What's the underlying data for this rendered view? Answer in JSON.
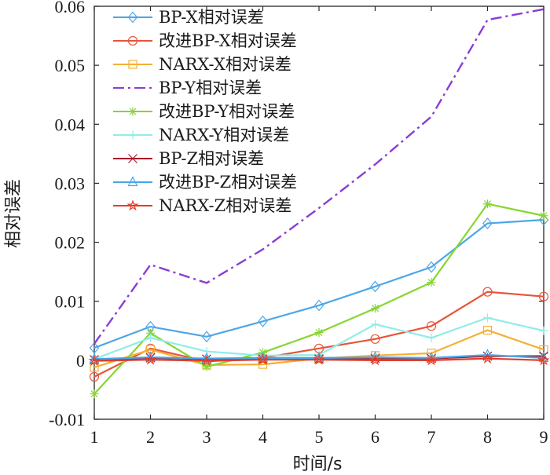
{
  "chart_data": {
    "type": "line",
    "title": "",
    "xlabel": "时间/s",
    "ylabel": "相对误差",
    "x": [
      1,
      2,
      3,
      4,
      5,
      6,
      7,
      8,
      9
    ],
    "xlim": [
      1,
      9
    ],
    "ylim": [
      -0.01,
      0.06
    ],
    "xticks": [
      "1",
      "2",
      "3",
      "4",
      "5",
      "6",
      "7",
      "8",
      "9"
    ],
    "yticks": [
      {
        "value": -0.01,
        "label": "-0.01"
      },
      {
        "value": 0,
        "label": "0"
      },
      {
        "value": 0.01,
        "label": "0.01"
      },
      {
        "value": 0.02,
        "label": "0.02"
      },
      {
        "value": 0.03,
        "label": "0.03"
      },
      {
        "value": 0.04,
        "label": "0.04"
      },
      {
        "value": 0.05,
        "label": "0.05"
      },
      {
        "value": 0.06,
        "label": "0.06"
      }
    ],
    "grid": false,
    "legend_position": "top-left",
    "series": [
      {
        "name": "BP-X相对误差",
        "color": "#4DA6E8",
        "marker": "diamond",
        "dash": "solid",
        "values": [
          0.0021,
          0.0057,
          0.004,
          0.0066,
          0.0093,
          0.0125,
          0.0158,
          0.0232,
          0.0238
        ]
      },
      {
        "name": "改进BP-X相对误差",
        "color": "#E8543A",
        "marker": "circle",
        "dash": "solid",
        "values": [
          -0.0028,
          0.002,
          -0.0002,
          0.0004,
          0.002,
          0.0036,
          0.0058,
          0.0116,
          0.0108
        ]
      },
      {
        "name": "NARX-X相对误差",
        "color": "#F5B035",
        "marker": "square",
        "dash": "solid",
        "values": [
          -0.0012,
          0.0018,
          -0.0008,
          -0.0007,
          0.0003,
          0.0008,
          0.0012,
          0.0051,
          0.0018
        ]
      },
      {
        "name": "BP-Y相对误差",
        "color": "#8A3DD6",
        "marker": "none",
        "dash": "dashdot",
        "values": [
          0.0028,
          0.0162,
          0.0131,
          0.0188,
          0.0258,
          0.0332,
          0.0413,
          0.0577,
          0.0595
        ]
      },
      {
        "name": "改进BP-Y相对误差",
        "color": "#86D630",
        "marker": "asterisk",
        "dash": "solid",
        "values": [
          -0.0057,
          0.0046,
          -0.0011,
          0.0013,
          0.0047,
          0.0088,
          0.0132,
          0.0265,
          0.0245
        ]
      },
      {
        "name": "NARX-Y相对误差",
        "color": "#8FEDE8",
        "marker": "plus",
        "dash": "solid",
        "values": [
          0.0002,
          0.0038,
          0.0015,
          0.0008,
          0.0009,
          0.0061,
          0.0038,
          0.0072,
          0.005
        ]
      },
      {
        "name": "BP-Z相对误差",
        "color": "#A8192B",
        "marker": "x",
        "dash": "solid",
        "values": [
          0.0001,
          0.0004,
          0.0002,
          0.0002,
          0.0002,
          0.0003,
          0.0003,
          0.0007,
          0.0007
        ]
      },
      {
        "name": "改进BP-Z相对误差",
        "color": "#45A8E8",
        "marker": "triangle",
        "dash": "solid",
        "values": [
          0.0002,
          0.0005,
          0.0003,
          0.0004,
          0.0004,
          0.0005,
          0.0004,
          0.0009,
          0.0004
        ]
      },
      {
        "name": "NARX-Z相对误差",
        "color": "#E33D2B",
        "marker": "star",
        "dash": "solid",
        "values": [
          -0.0001,
          0.0001,
          -0.0001,
          0.0001,
          0.0001,
          0.0,
          0.0,
          0.0003,
          0.0
        ]
      }
    ]
  }
}
